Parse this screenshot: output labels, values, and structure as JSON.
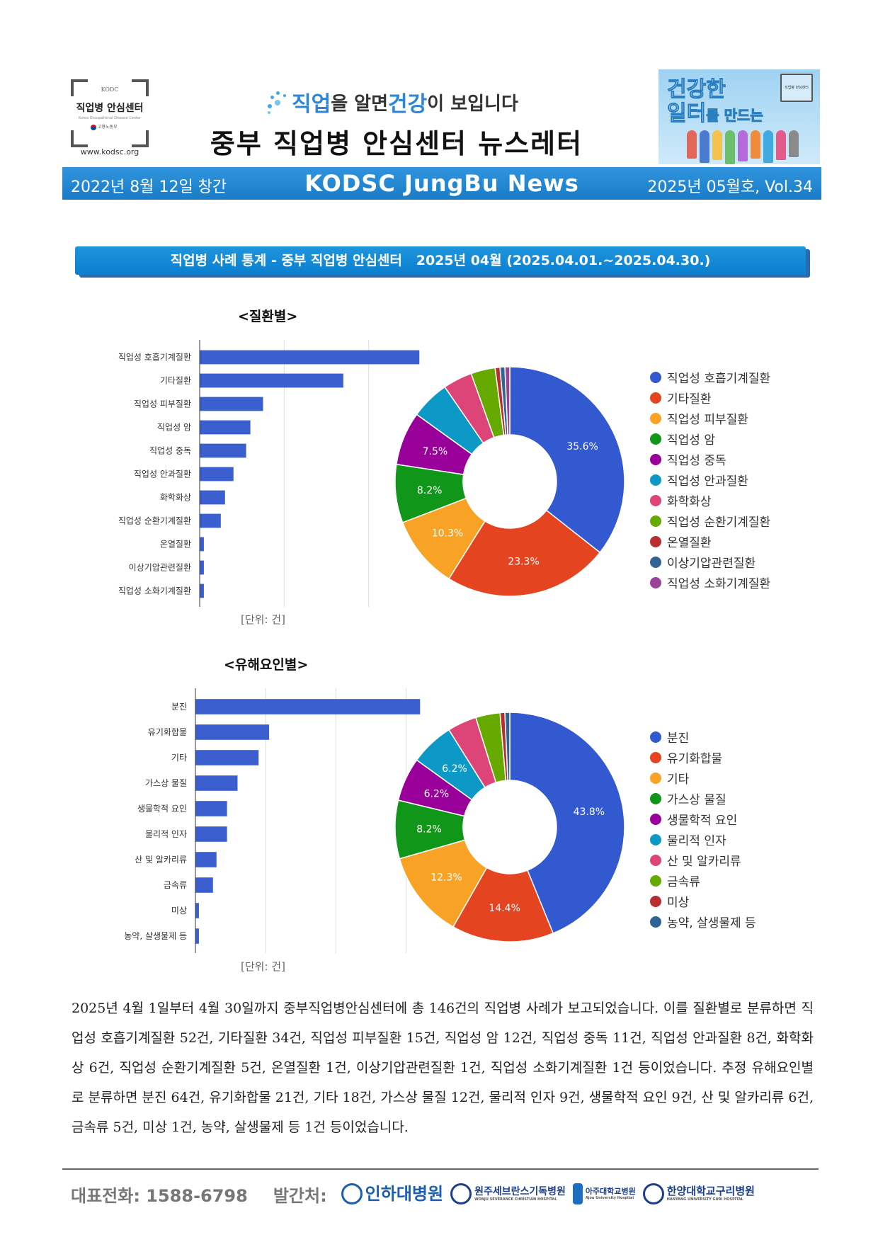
{
  "header": {
    "left_logo": {
      "org_abbr": "KODC",
      "name": "직업병 안심센터",
      "subtitle": "Korea Occupational Disease Center",
      "agency": "고용노동부",
      "url": "www.kodsc.org"
    },
    "slogan": {
      "w1": "직업",
      "w2": "을 알면 ",
      "w3": "건강",
      "w4": "이 보입니다"
    },
    "title": "중부 직업병 안심센터 뉴스레터",
    "right_logo": {
      "line1": "건강한",
      "line2": "일터",
      "line2_suffix": "를 만드는",
      "badge": "직업병 안심센터"
    }
  },
  "banner": {
    "founded": "2022년 8월 12일 창간",
    "name": "KODSC JungBu News",
    "issue": "2025년 05월호, Vol.34"
  },
  "section_title": "직업병 사례 통계 - 중부 직업병 안심센터   2025년 04월 (2025.04.01.~2025.04.30.)",
  "chart_data": [
    {
      "type": "bar",
      "title": "<질환별>",
      "orientation": "horizontal",
      "categories": [
        "직업성 호흡기계질환",
        "기타질환",
        "직업성 피부질환",
        "직업성 암",
        "직업성 중독",
        "직업성 안과질환",
        "화학화상",
        "직업성 순환기계질환",
        "온열질환",
        "이상기압관련질환",
        "직업성 소화기계질환"
      ],
      "values": [
        52,
        34,
        15,
        12,
        11,
        8,
        6,
        5,
        1,
        1,
        1
      ],
      "xlim": [
        0,
        60
      ],
      "xticks": [
        0,
        20,
        40
      ],
      "unit_label": "[단위: 건]",
      "color": "#3b5fcf"
    },
    {
      "type": "pie",
      "donut": true,
      "categories": [
        "직업성 호흡기계질환",
        "기타질환",
        "직업성 피부질환",
        "직업성 암",
        "직업성 중독",
        "직업성 안과질환",
        "화학화상",
        "직업성 순환기계질환",
        "온열질환",
        "이상기압관련질환",
        "직업성 소화기계질환"
      ],
      "values": [
        52,
        34,
        15,
        12,
        11,
        8,
        6,
        5,
        1,
        1,
        1
      ],
      "labels": [
        "35.6%",
        "23.3%",
        "10.3%",
        "8.2%",
        "7.5%",
        "",
        "",
        "",
        "",
        "",
        ""
      ],
      "colors": [
        "#3359d1",
        "#e4441f",
        "#f8a325",
        "#109618",
        "#990099",
        "#0d99c6",
        "#dd4477",
        "#66aa00",
        "#b82e2e",
        "#316395",
        "#994499"
      ],
      "legend_position": "right"
    },
    {
      "type": "bar",
      "title": "<유해요인별>",
      "orientation": "horizontal",
      "categories": [
        "분진",
        "유기화합물",
        "기타",
        "가스상 물질",
        "생물학적 요인",
        "물리적 인자",
        "산 및 알카리류",
        "금속류",
        "미상",
        "농약, 살생물제 등"
      ],
      "values": [
        64,
        21,
        18,
        12,
        9,
        9,
        6,
        5,
        1,
        1
      ],
      "xlim": [
        0,
        70
      ],
      "xticks": [
        0,
        20,
        40,
        60
      ],
      "unit_label": "[단위: 건]",
      "color": "#3b5fcf"
    },
    {
      "type": "pie",
      "donut": true,
      "categories": [
        "분진",
        "유기화합물",
        "기타",
        "가스상 물질",
        "생물학적 요인",
        "물리적 인자",
        "산 및 알카리류",
        "금속류",
        "미상",
        "농약, 살생물제 등"
      ],
      "values": [
        64,
        21,
        18,
        12,
        9,
        9,
        6,
        5,
        1,
        1
      ],
      "labels": [
        "43.8%",
        "14.4%",
        "12.3%",
        "8.2%",
        "6.2%",
        "6.2%",
        "",
        "",
        "",
        ""
      ],
      "colors": [
        "#3359d1",
        "#e4441f",
        "#f8a325",
        "#109618",
        "#990099",
        "#0d99c6",
        "#dd4477",
        "#66aa00",
        "#b82e2e",
        "#316395"
      ],
      "legend_position": "right"
    }
  ],
  "summary": "2025년 4월 1일부터 4월 30일까지 중부직업병안심센터에 총 146건의 직업병 사례가 보고되었습니다. 이를 질환별로 분류하면 직업성 호흡기계질환 52건, 기타질환 34건, 직업성 피부질환 15건, 직업성 암 12건, 직업성 중독 11건, 직업성 안과질환 8건, 화학화상 6건, 직업성 순환기계질환 5건, 온열질환 1건, 이상기압관련질환 1건, 직업성 소화기계질환 1건 등이었습니다. 추정 유해요인별로 분류하면 분진 64건, 유기화합물 21건, 기타 18건, 가스상 물질 12건, 물리적 인자 9건, 생물학적 요인 9건, 산 및 알카리류 6건, 금속류 5건, 미상 1건, 농약, 살생물제 등 1건 등이었습니다.",
  "footer": {
    "phone": "대표전화:  1588-6798",
    "publisher_label": "발간처:",
    "hospitals": [
      {
        "name": "인하대병원",
        "en": "",
        "color": "#1c5fb0"
      },
      {
        "name": "원주세브란스기독병원",
        "en": "WONJU SEVERANCE CHRISTIAN HOSPITAL",
        "color": "#1c3f8c"
      },
      {
        "name": "아주대학교병원",
        "en": "Ajou University Hospital",
        "color": "#1c3f8c"
      },
      {
        "name": "한양대학교구리병원",
        "en": "HANYANG UNIVERSITY GURI HOSPITAL",
        "color": "#1c3f8c"
      }
    ]
  }
}
